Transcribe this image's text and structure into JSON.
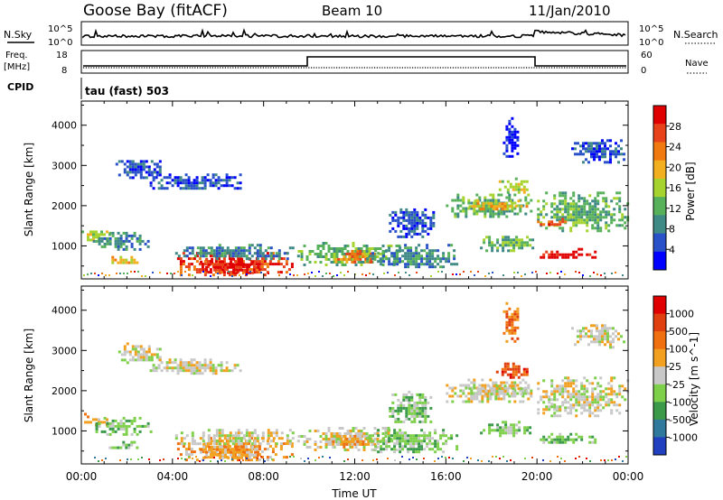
{
  "header": {
    "station": "Goose Bay (fitACF)",
    "beam": "Beam 10",
    "date": "11/Jan/2010"
  },
  "status_panels": {
    "nsky_label": "N.Sky",
    "nsearch_label": "N.Search",
    "count_ticks_left": [
      "10^5",
      "10^0"
    ],
    "count_ticks_right": [
      "10^5",
      "10^0"
    ],
    "freq_label_1": "Freq.",
    "freq_label_2": "[MHz]",
    "freq_ticks": [
      "18",
      "8"
    ],
    "nave_label": "Nave",
    "nave_ticks": [
      "60",
      "0"
    ],
    "cpid_label": "CPID",
    "cpid_value": "tau (fast) 503"
  },
  "chart_data": [
    {
      "type": "heatmap",
      "name": "power-panel",
      "ylabel": "Slant Range [km]",
      "yticks": [
        1000,
        2000,
        3000,
        4000
      ],
      "ylim": [
        180,
        4600
      ],
      "xlim": [
        0,
        24
      ],
      "colorbar_label": "Power [dB]",
      "colorbar_ticks": [
        "28",
        "24",
        "20",
        "16",
        "12",
        "8",
        "4"
      ],
      "colorbar_colors": [
        "#0000ff",
        "#2a52c8",
        "#3f8a86",
        "#57b15a",
        "#a6d32d",
        "#f2b021",
        "#f07a10",
        "#e8421a",
        "#e00000"
      ],
      "echo_regions": [
        {
          "t0": 0.0,
          "t1": 1.2,
          "r0": 1150,
          "r1": 1450,
          "level": 4
        },
        {
          "t0": 0.5,
          "t1": 3.0,
          "r0": 900,
          "r1": 1350,
          "level": 2
        },
        {
          "t0": 1.2,
          "t1": 2.4,
          "r0": 550,
          "r1": 750,
          "level": 5
        },
        {
          "t0": 4.2,
          "t1": 9.2,
          "r0": 250,
          "r1": 850,
          "level": 7
        },
        {
          "t0": 5.2,
          "t1": 7.8,
          "r0": 350,
          "r1": 700,
          "level": 8
        },
        {
          "t0": 4.0,
          "t1": 9.5,
          "r0": 700,
          "r1": 1050,
          "level": 2
        },
        {
          "t0": 3.0,
          "t1": 7.0,
          "r0": 2400,
          "r1": 2800,
          "level": 1
        },
        {
          "t0": 1.5,
          "t1": 3.5,
          "r0": 2700,
          "r1": 3200,
          "level": 1
        },
        {
          "t0": 9.5,
          "t1": 14.0,
          "r0": 550,
          "r1": 1100,
          "level": 3
        },
        {
          "t0": 11.0,
          "t1": 12.8,
          "r0": 600,
          "r1": 900,
          "level": 6
        },
        {
          "t0": 12.5,
          "t1": 16.5,
          "r0": 450,
          "r1": 1050,
          "level": 2
        },
        {
          "t0": 13.5,
          "t1": 15.5,
          "r0": 1200,
          "r1": 2000,
          "level": 1
        },
        {
          "t0": 16.0,
          "t1": 19.8,
          "r0": 1700,
          "r1": 2300,
          "level": 3
        },
        {
          "t0": 17.0,
          "t1": 19.5,
          "r0": 1900,
          "r1": 2150,
          "level": 5
        },
        {
          "t0": 18.2,
          "t1": 19.6,
          "r0": 2350,
          "r1": 2700,
          "level": 4
        },
        {
          "t0": 17.5,
          "t1": 19.8,
          "r0": 900,
          "r1": 1250,
          "level": 3
        },
        {
          "t0": 20.0,
          "t1": 24.0,
          "r0": 1400,
          "r1": 2350,
          "level": 3
        },
        {
          "t0": 20.0,
          "t1": 21.3,
          "r0": 1500,
          "r1": 1700,
          "level": 7
        },
        {
          "t0": 20.0,
          "t1": 22.5,
          "r0": 700,
          "r1": 950,
          "level": 8
        },
        {
          "t0": 21.5,
          "t1": 23.8,
          "r0": 3100,
          "r1": 3650,
          "level": 1
        },
        {
          "t0": 18.5,
          "t1": 19.2,
          "r0": 3200,
          "r1": 4200,
          "level": 0
        }
      ]
    },
    {
      "type": "heatmap",
      "name": "velocity-panel",
      "xlabel": "Time UT",
      "ylabel": "Slant Range [km]",
      "yticks": [
        1000,
        2000,
        3000,
        4000
      ],
      "ylim": [
        180,
        4600
      ],
      "xticks": [
        "00:00",
        "04:00",
        "08:00",
        "12:00",
        "16:00",
        "20:00",
        "00:00"
      ],
      "xlim": [
        0,
        24
      ],
      "colorbar_label": "Velocity [m s^-1]",
      "colorbar_ticks": [
        "1000",
        "500",
        "100",
        "25",
        "-25",
        "-100",
        "-500",
        "-1000"
      ],
      "colorbar_colors": [
        "#2040c0",
        "#2f7a9c",
        "#3a9a4a",
        "#7ed04a",
        "#c8c8c8",
        "#f2a020",
        "#f07010",
        "#e04010",
        "#e00000"
      ],
      "echo_regions": [
        {
          "t0": 0.0,
          "t1": 1.2,
          "r0": 1150,
          "r1": 1450,
          "level": 5
        },
        {
          "t0": 0.5,
          "t1": 3.0,
          "r0": 900,
          "r1": 1350,
          "level": 3
        },
        {
          "t0": 1.2,
          "t1": 2.4,
          "r0": 550,
          "r1": 750,
          "level": 3
        },
        {
          "t0": 4.2,
          "t1": 9.2,
          "r0": 250,
          "r1": 850,
          "level": 5
        },
        {
          "t0": 5.2,
          "t1": 7.8,
          "r0": 350,
          "r1": 700,
          "level": 5
        },
        {
          "t0": 4.0,
          "t1": 9.5,
          "r0": 700,
          "r1": 1050,
          "level": 4
        },
        {
          "t0": 3.0,
          "t1": 7.0,
          "r0": 2400,
          "r1": 2800,
          "level": 4
        },
        {
          "t0": 1.5,
          "t1": 3.5,
          "r0": 2700,
          "r1": 3200,
          "level": 4
        },
        {
          "t0": 9.5,
          "t1": 14.0,
          "r0": 550,
          "r1": 1100,
          "level": 4
        },
        {
          "t0": 11.0,
          "t1": 12.8,
          "r0": 600,
          "r1": 900,
          "level": 5
        },
        {
          "t0": 12.5,
          "t1": 16.5,
          "r0": 450,
          "r1": 1050,
          "level": 3
        },
        {
          "t0": 13.5,
          "t1": 15.5,
          "r0": 1200,
          "r1": 2000,
          "level": 3
        },
        {
          "t0": 16.0,
          "t1": 19.8,
          "r0": 1700,
          "r1": 2300,
          "level": 4
        },
        {
          "t0": 17.0,
          "t1": 19.5,
          "r0": 1900,
          "r1": 2150,
          "level": 4
        },
        {
          "t0": 18.2,
          "t1": 19.6,
          "r0": 2350,
          "r1": 2700,
          "level": 7
        },
        {
          "t0": 17.5,
          "t1": 19.8,
          "r0": 900,
          "r1": 1250,
          "level": 3
        },
        {
          "t0": 20.0,
          "t1": 24.0,
          "r0": 1400,
          "r1": 2350,
          "level": 4
        },
        {
          "t0": 20.0,
          "t1": 21.3,
          "r0": 1500,
          "r1": 1700,
          "level": 4
        },
        {
          "t0": 20.0,
          "t1": 22.5,
          "r0": 700,
          "r1": 950,
          "level": 3
        },
        {
          "t0": 21.5,
          "t1": 23.8,
          "r0": 3100,
          "r1": 3650,
          "level": 4
        },
        {
          "t0": 18.5,
          "t1": 19.2,
          "r0": 3200,
          "r1": 4200,
          "level": 6
        }
      ]
    }
  ]
}
